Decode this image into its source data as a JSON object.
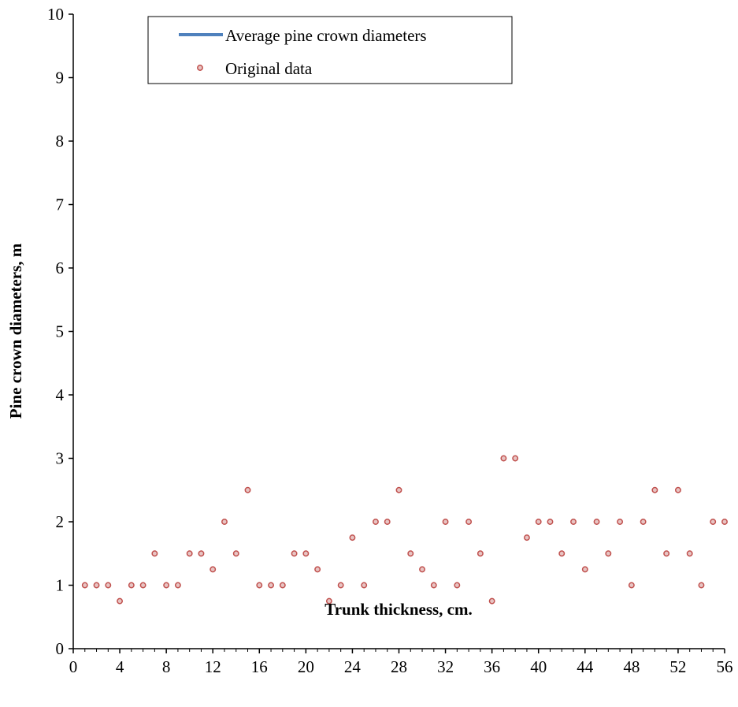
{
  "chart_data": {
    "type": "scatter",
    "xlabel": "Trunk thickness, cm.",
    "ylabel": "Pine crown diameters, m",
    "xlim": [
      0,
      56
    ],
    "ylim": [
      0,
      10
    ],
    "x_ticks": [
      0,
      4,
      8,
      12,
      16,
      20,
      24,
      28,
      32,
      36,
      40,
      44,
      48,
      52,
      56
    ],
    "y_ticks": [
      0,
      1,
      2,
      3,
      4,
      5,
      6,
      7,
      8,
      9,
      10
    ],
    "grid": false,
    "legend_position": "top-center",
    "series": [
      {
        "name": "Average pine crown diameters",
        "type": "line",
        "color": "#4f81bd",
        "points": []
      },
      {
        "name": "Original data",
        "type": "scatter",
        "color": "#c0504d",
        "x": [
          1,
          2,
          3,
          4,
          5,
          6,
          7,
          8,
          9,
          10,
          11,
          12,
          13,
          14,
          15,
          16,
          17,
          18,
          19,
          20,
          21,
          22,
          23,
          24,
          25,
          26,
          27,
          28,
          29,
          30,
          31,
          32,
          33,
          34,
          35,
          36,
          37,
          38,
          39,
          40,
          41,
          42,
          43,
          44,
          45,
          46,
          47,
          48,
          49,
          50,
          51,
          52,
          53,
          54,
          55,
          56
        ],
        "y": [
          1,
          1,
          1,
          0.75,
          1,
          1,
          1.5,
          1,
          1,
          1.5,
          1.5,
          1.25,
          2,
          1.5,
          2.5,
          1,
          1,
          1,
          1.5,
          1.5,
          1.25,
          0.75,
          1,
          1.75,
          1,
          2,
          2,
          2.5,
          1.5,
          1.25,
          1,
          2,
          1,
          2,
          1.5,
          0.75,
          3,
          3,
          1.75,
          2,
          2,
          1.5,
          2,
          1.25,
          2,
          1.5,
          2,
          1,
          2,
          2.5,
          1.5,
          2.5,
          1.5,
          1,
          2,
          2
        ]
      }
    ]
  }
}
